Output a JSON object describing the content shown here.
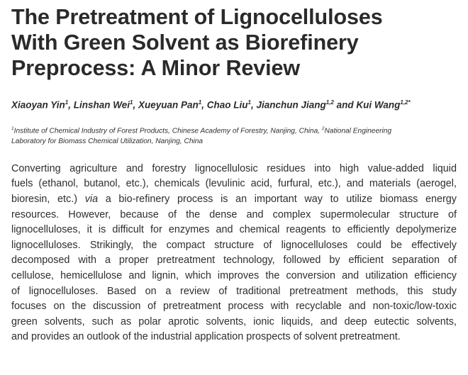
{
  "title": {
    "line1": "The Pretreatment of Lignocelluloses",
    "line2": "With Green Solvent as Biorefinery",
    "line3": "Preprocess: A Minor Review"
  },
  "authors": [
    {
      "name": "Xiaoyan Yin",
      "sup": "1"
    },
    {
      "name": "Linshan Wei",
      "sup": "1"
    },
    {
      "name": "Xueyuan Pan",
      "sup": "1"
    },
    {
      "name": "Chao Liu",
      "sup": "1"
    },
    {
      "name": "Jianchun Jiang",
      "sup": "1,2"
    },
    {
      "name": "Kui Wang",
      "sup": "1,2*"
    }
  ],
  "author_separator": ", ",
  "author_conjunction": " and ",
  "affiliations": {
    "sup1": "1",
    "line1": "Institute of Chemical Industry of Forest Products, Chinese Academy of Forestry, Nanjing, China, ",
    "sup2": "2",
    "line1_end": "National Engineering",
    "line2": "Laboratory for Biomass Chemical Utilization, Nanjing, China"
  },
  "abstract": {
    "l1": "Converting agriculture and forestry lignocellulosic residues into high value-added liquid",
    "l2": "fuels (ethanol, butanol, etc.), chemicals (levulinic acid, furfural, etc.), and materials (aerogel,",
    "l3a": "bioresin, etc.) ",
    "l3_via": "via",
    "l3b": " a bio-refinery process is an important way to utilize biomass energy",
    "l4": "resources. However, because of the dense and complex supermolecular structure of",
    "l5": "lignocelluloses, it is difficult for enzymes and chemical reagents to efficiently depolymerize",
    "l6": "lignocelluloses. Strikingly, the compact structure of lignocelluloses could be effectively",
    "l7": "decomposed with a proper pretreatment technology, followed by efficient separation of",
    "l8": "cellulose, hemicellulose and lignin, which improves the conversion and utilization efficiency",
    "l9": "of lignocelluloses. Based on a review of traditional pretreatment methods, this study",
    "l10": "focuses on the discussion of pretreatment process with recyclable and non-toxic/low-toxic",
    "l11": "green solvents, such as polar aprotic solvents, ionic liquids, and deep eutectic solvents,",
    "l12": "and provides an outlook of the industrial application prospects of solvent pretreatment."
  }
}
